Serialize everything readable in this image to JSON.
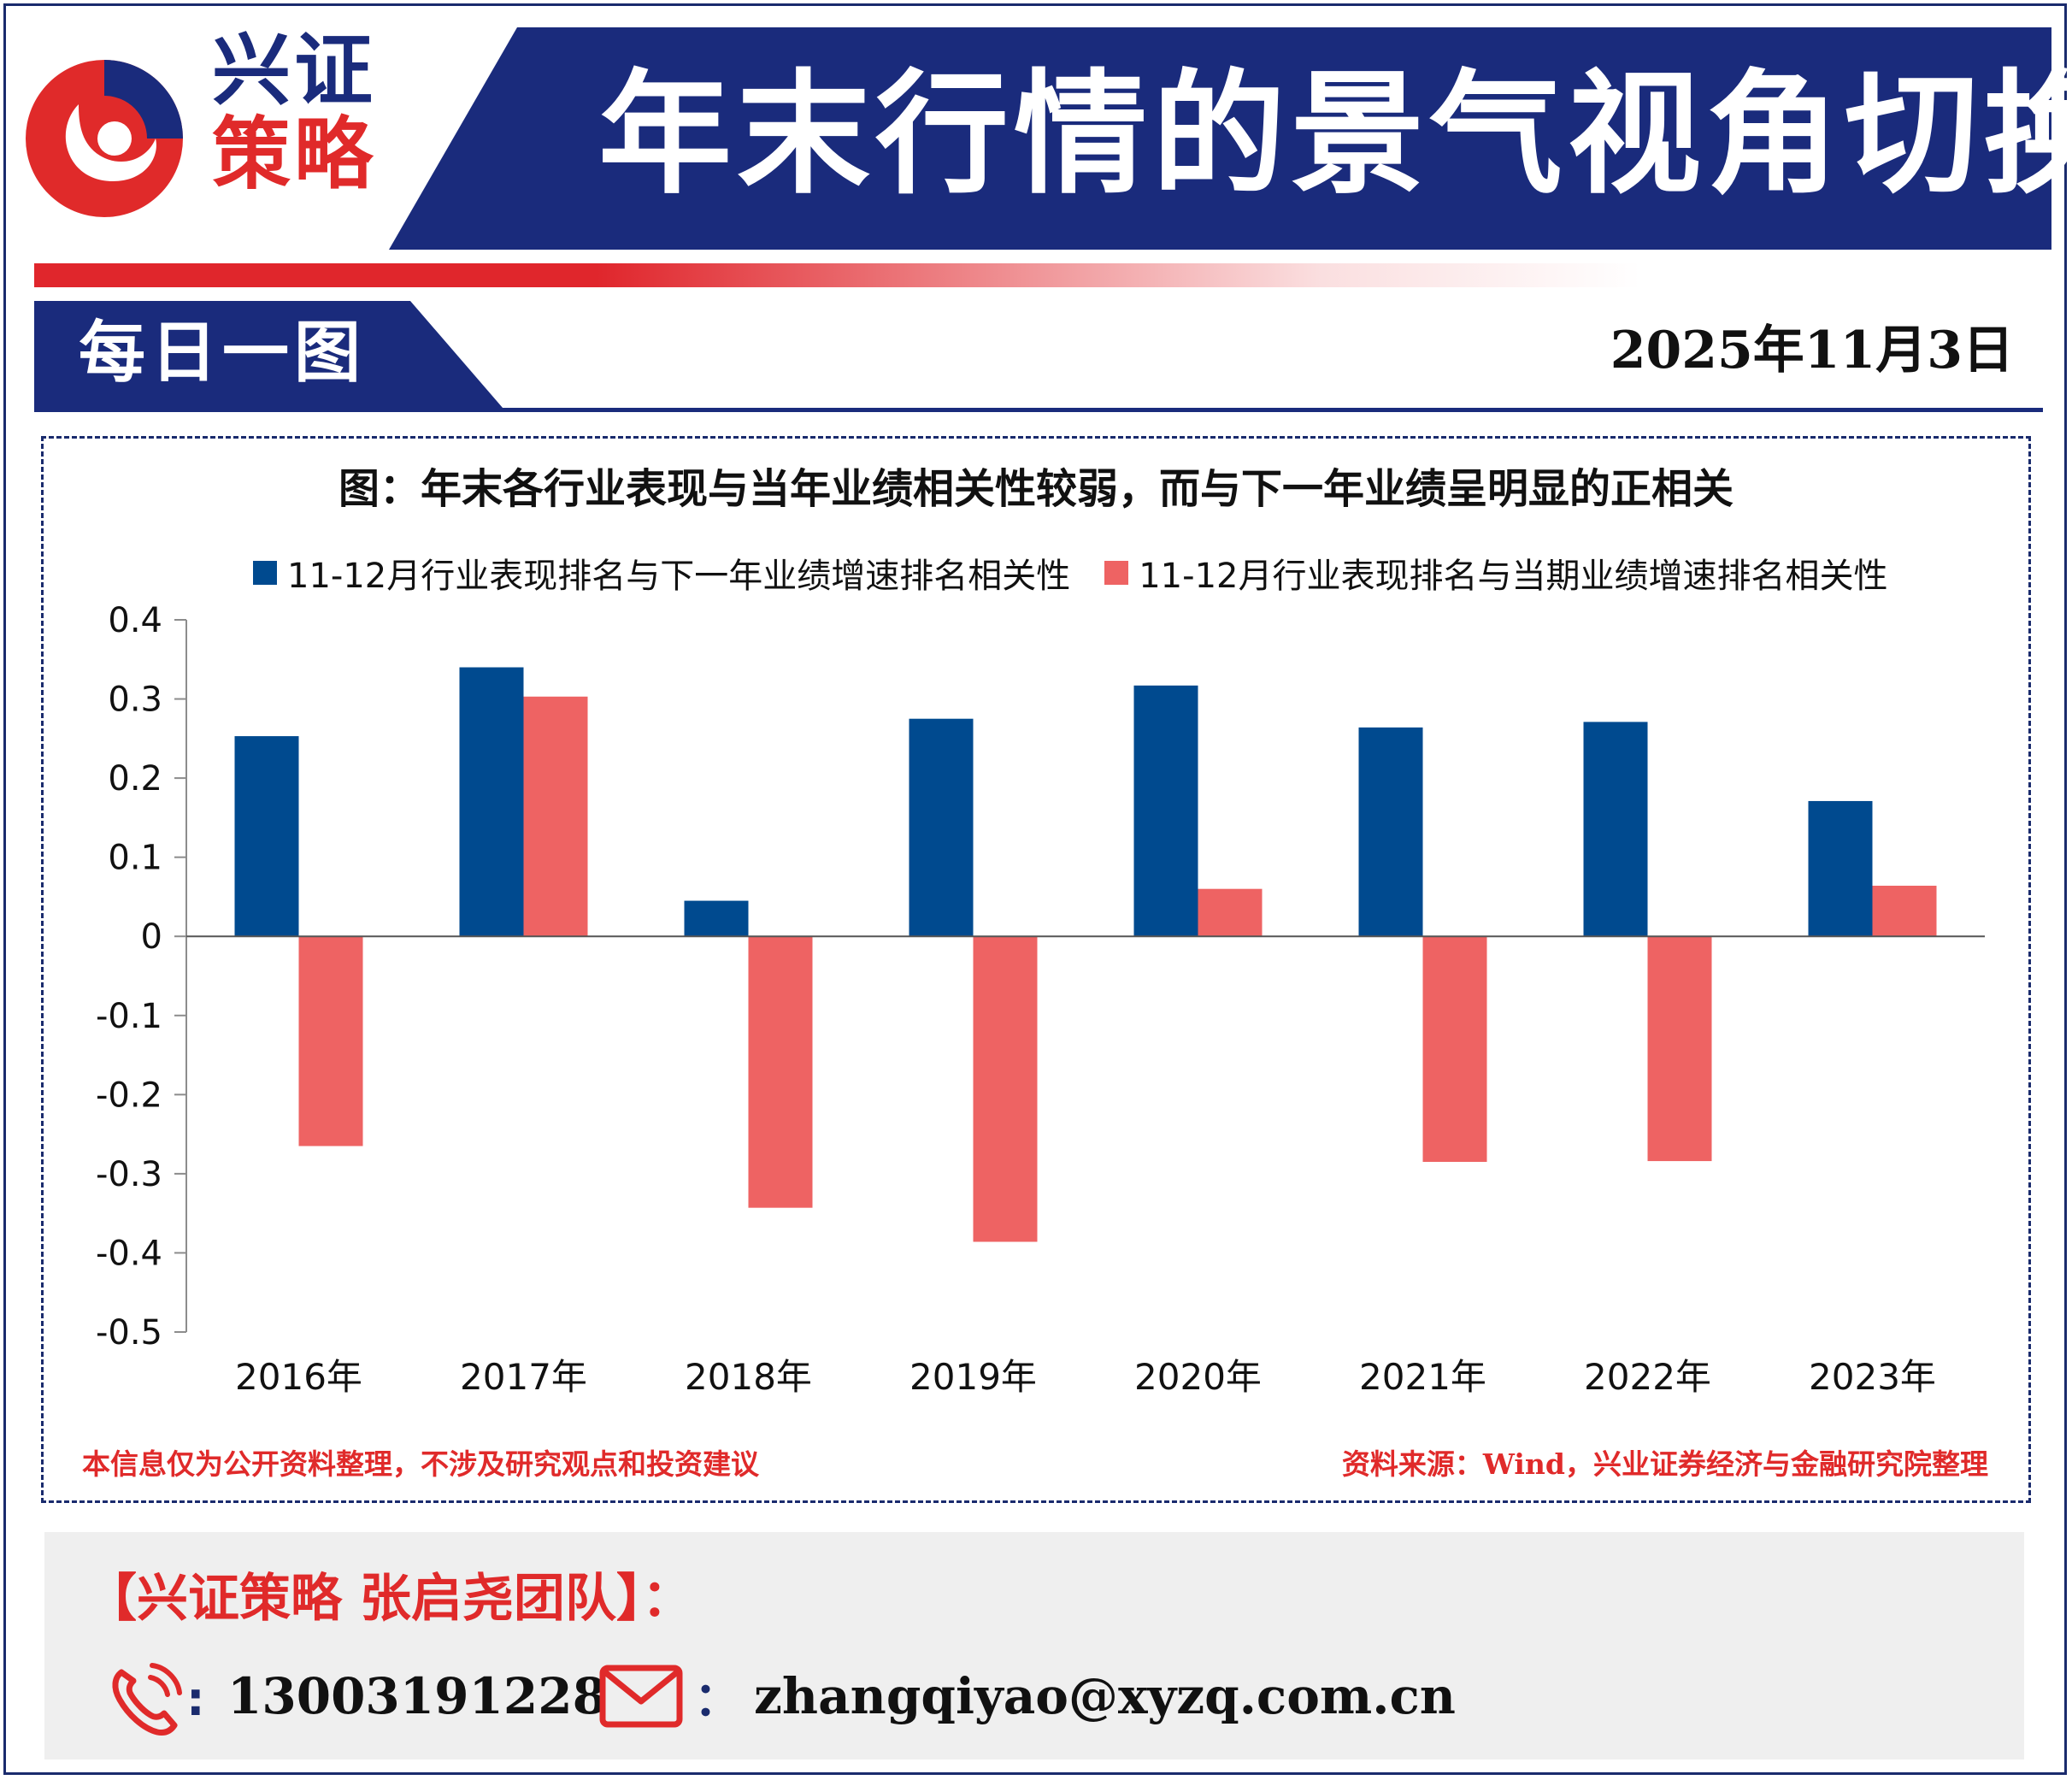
{
  "header": {
    "brand_line1": "兴证",
    "brand_line2": "策略",
    "main_title": "年末行情的景气视角切换",
    "subhead": "每日一图",
    "date": "2025年11月3日"
  },
  "colors": {
    "navy": "#1a2b7c",
    "brand_red": "#e02a2a",
    "series_blue": "#004a8f",
    "series_red": "#ee6363"
  },
  "chart_data": {
    "type": "bar",
    "title": "图：年末各行业表现与当年业绩相关性较弱，而与下一年业绩呈明显的正相关",
    "categories": [
      "2016年",
      "2017年",
      "2018年",
      "2019年",
      "2020年",
      "2021年",
      "2022年",
      "2023年"
    ],
    "series": [
      {
        "name": "11-12月行业表现排名与下一年业绩增速排名相关性",
        "color": "#004a8f",
        "values": [
          0.253,
          0.34,
          0.045,
          0.275,
          0.317,
          0.264,
          0.271,
          0.171
        ]
      },
      {
        "name": "11-12月行业表现排名与当期业绩增速排名相关性",
        "color": "#ee6363",
        "values": [
          -0.265,
          0.303,
          -0.343,
          -0.386,
          0.06,
          -0.285,
          -0.284,
          0.064
        ]
      }
    ],
    "ylim": [
      -0.5,
      0.4
    ],
    "yticks": [
      0.4,
      0.3,
      0.2,
      0.1,
      0,
      -0.1,
      -0.2,
      -0.3,
      -0.4,
      -0.5
    ],
    "ytick_labels": [
      "0.4",
      "0.3",
      "0.2",
      "0.1",
      "0",
      "-0.1",
      "-0.2",
      "-0.3",
      "-0.4",
      "-0.5"
    ],
    "xlabel": "",
    "ylabel": "",
    "legend_position": "top",
    "grid": false
  },
  "notes": {
    "disclaimer": "本信息仅为公开资料整理，不涉及研究观点和投资建议",
    "source": "资料来源：Wind，兴业证券经济与金融研究院整理"
  },
  "footer": {
    "team_label": "【兴证策略 张启尧团队】：",
    "colon": ":",
    "email_colon": "：",
    "phone": "13003191228",
    "email": "zhangqiyao@xyzq.com.cn"
  }
}
